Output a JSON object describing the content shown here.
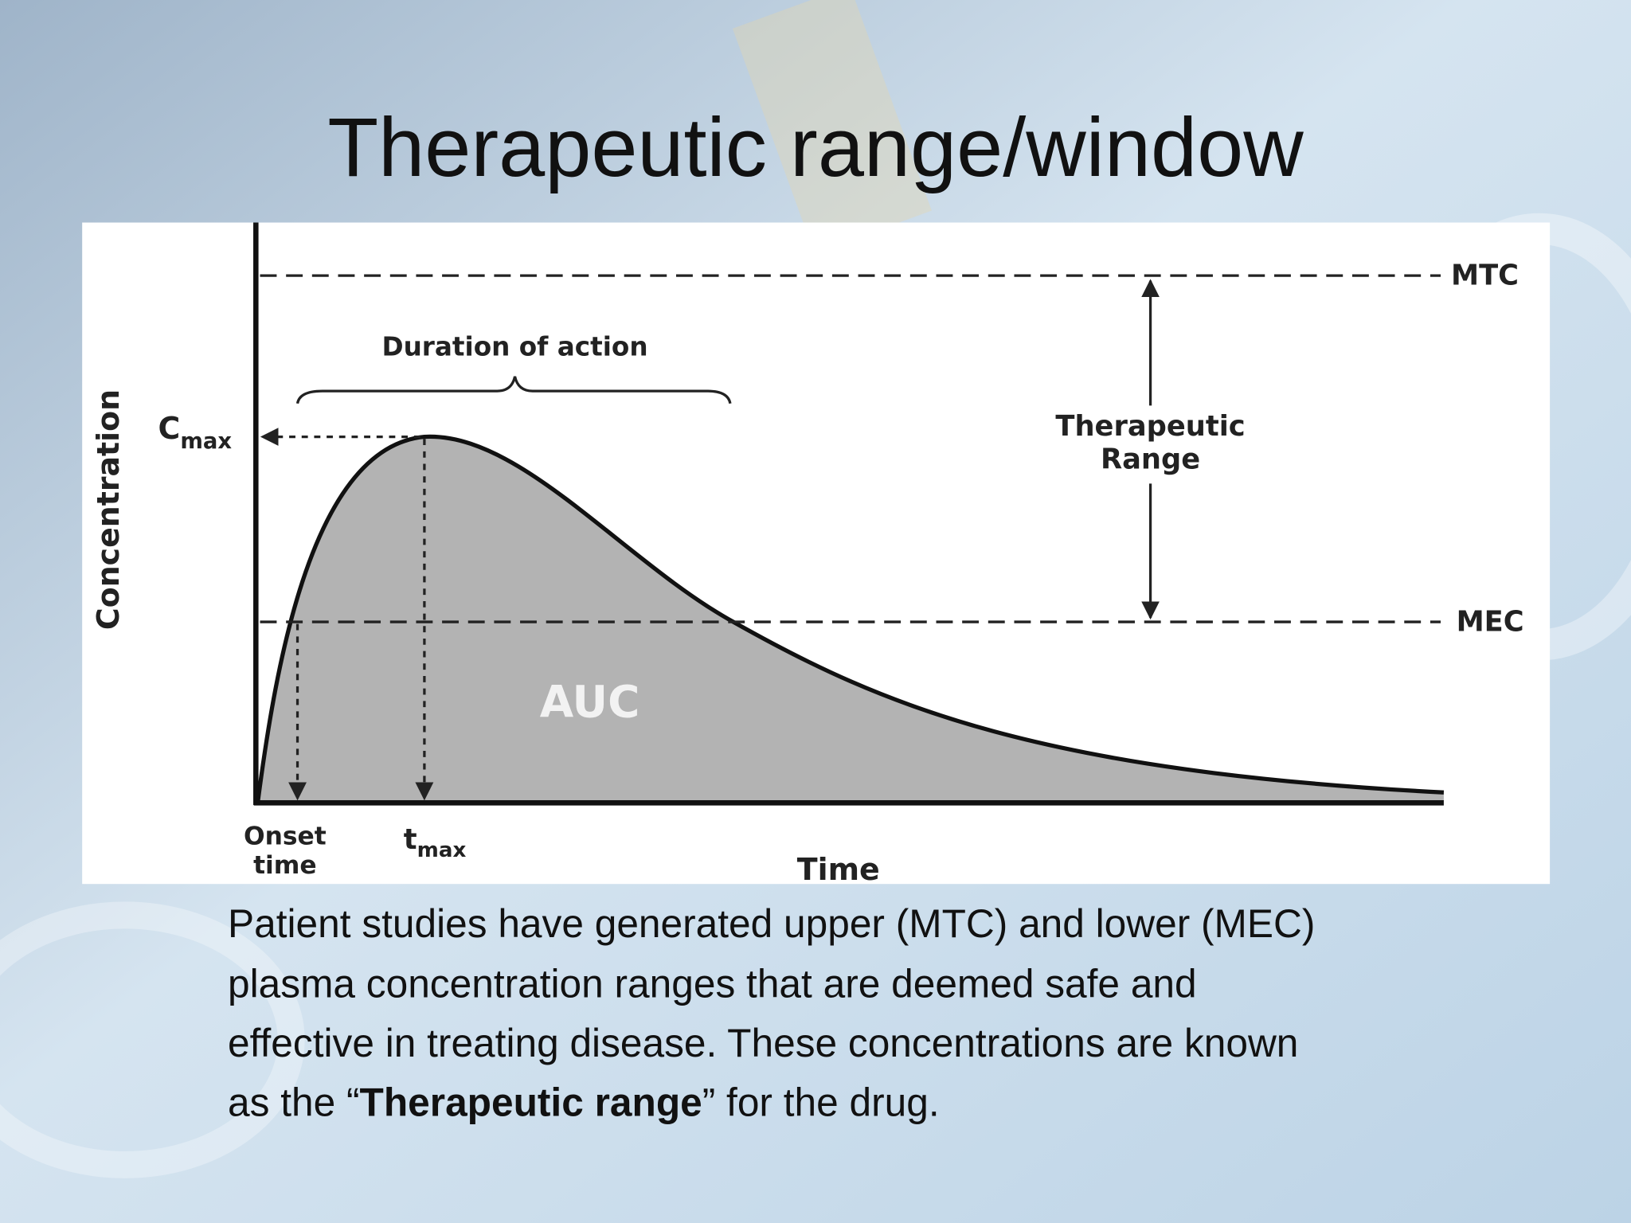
{
  "title": "Therapeutic range/window",
  "diagram": {
    "y_axis_label": "Concentration",
    "x_axis_label": "Time",
    "mtc_label": "MTC",
    "mec_label": "MEC",
    "range_label": [
      "Therapeutic",
      "Range"
    ],
    "duration_label": "Duration of action",
    "cmax_label": {
      "main": "C",
      "sub": "max"
    },
    "tmax_label": {
      "main": "t",
      "sub": "max"
    },
    "onset_label": [
      "Onset",
      "time"
    ],
    "area_label": "AUC"
  },
  "body": {
    "lines": [
      "Patient studies have generated upper (MTC) and lower (MEC)",
      "plasma concentration ranges that are deemed safe and",
      "effective in treating disease. These concentrations are known"
    ],
    "last_line": {
      "before": "as the “",
      "bold": "Therapeutic range",
      "after": "” for the drug."
    }
  }
}
